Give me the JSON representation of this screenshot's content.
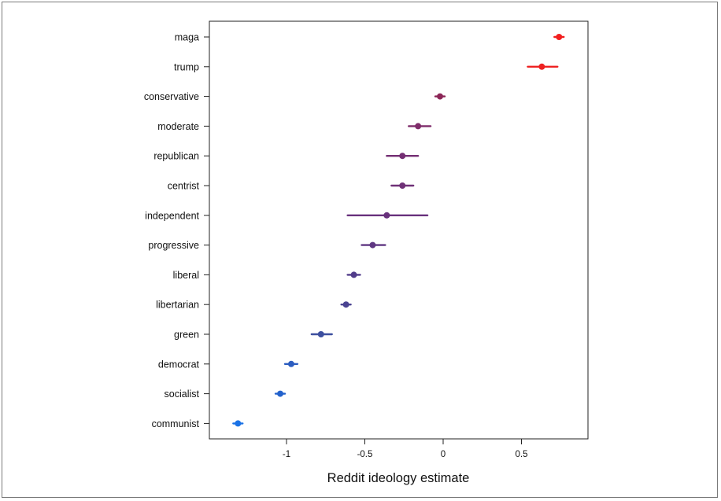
{
  "chart_data": {
    "type": "scatter",
    "subtype": "dot-and-whisker",
    "title": "",
    "xlabel": "Reddit ideology estimate",
    "ylabel": "",
    "xlim": [
      -1.5,
      0.9
    ],
    "xticks": [
      -1,
      -0.5,
      0,
      0.5
    ],
    "xtick_labels": [
      "-1",
      "-0.5",
      "0",
      "0.5"
    ],
    "grid": false,
    "legend": "none",
    "points": [
      {
        "label": "maga",
        "estimate": 0.74,
        "low": 0.71,
        "high": 0.77,
        "color": "#f21f1f"
      },
      {
        "label": "trump",
        "estimate": 0.63,
        "low": 0.54,
        "high": 0.73,
        "color": "#ee2222"
      },
      {
        "label": "conservative",
        "estimate": -0.02,
        "low": -0.05,
        "high": 0.01,
        "color": "#8c2657"
      },
      {
        "label": "moderate",
        "estimate": -0.16,
        "low": -0.22,
        "high": -0.08,
        "color": "#7f2c6a"
      },
      {
        "label": "republican",
        "estimate": -0.26,
        "low": -0.36,
        "high": -0.16,
        "color": "#742e73"
      },
      {
        "label": "centrist",
        "estimate": -0.26,
        "low": -0.33,
        "high": -0.19,
        "color": "#6f3177"
      },
      {
        "label": "independent",
        "estimate": -0.36,
        "low": -0.61,
        "high": -0.1,
        "color": "#68317c"
      },
      {
        "label": "progressive",
        "estimate": -0.45,
        "low": -0.52,
        "high": -0.37,
        "color": "#5f3782"
      },
      {
        "label": "liberal",
        "estimate": -0.57,
        "low": -0.61,
        "high": -0.53,
        "color": "#513c8a"
      },
      {
        "label": "libertarian",
        "estimate": -0.62,
        "low": -0.65,
        "high": -0.59,
        "color": "#4a4391"
      },
      {
        "label": "green",
        "estimate": -0.78,
        "low": -0.84,
        "high": -0.71,
        "color": "#3d4f9f"
      },
      {
        "label": "democrat",
        "estimate": -0.97,
        "low": -1.01,
        "high": -0.93,
        "color": "#2c5dc0"
      },
      {
        "label": "socialist",
        "estimate": -1.04,
        "low": -1.07,
        "high": -1.01,
        "color": "#2362cc"
      },
      {
        "label": "communist",
        "estimate": -1.31,
        "low": -1.34,
        "high": -1.28,
        "color": "#1a72e6"
      }
    ]
  }
}
